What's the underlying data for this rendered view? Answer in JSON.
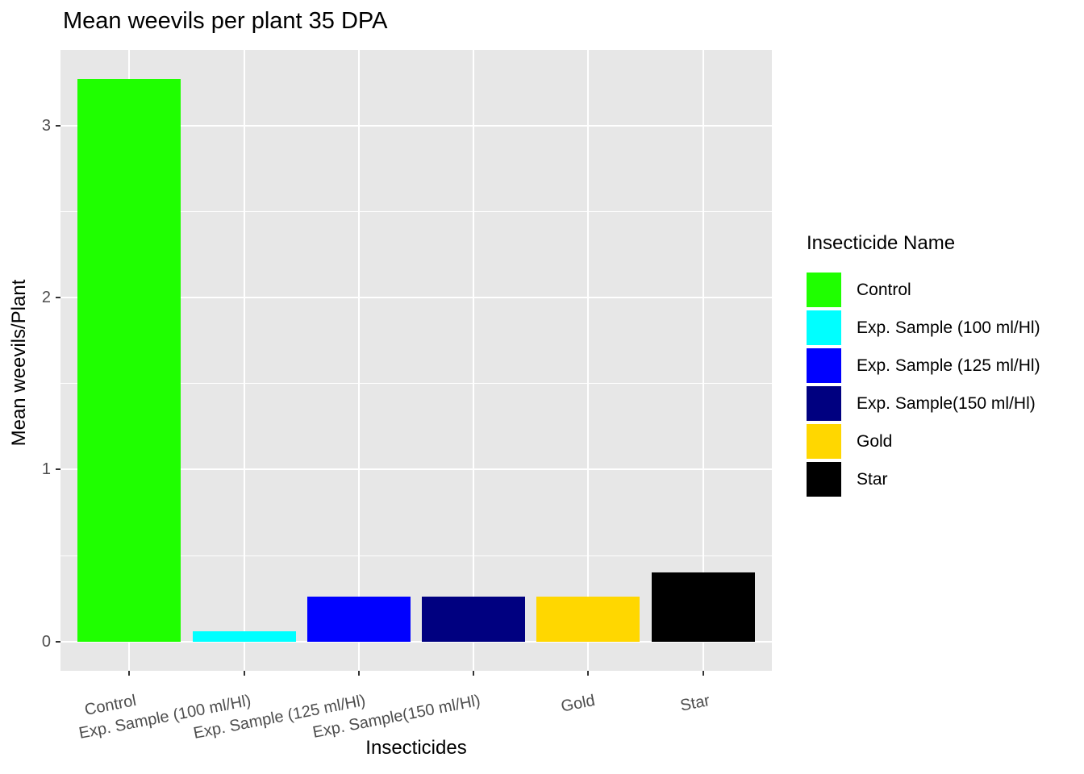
{
  "title": "Mean weevils per plant 35 DPA",
  "chart_data": {
    "type": "bar",
    "title": "Mean weevils per plant 35 DPA",
    "xlabel": "Insecticides",
    "ylabel": "Mean weevils/Plant",
    "categories": [
      "Control",
      "Exp. Sample (100 ml/Hl)",
      "Exp. Sample (125 ml/Hl)",
      "Exp. Sample(150 ml/Hl)",
      "Gold",
      "Star"
    ],
    "values": [
      3.27,
      0.06,
      0.26,
      0.26,
      0.26,
      0.4
    ],
    "bar_colors": [
      "#1FFF00",
      "#00FFFF",
      "#0000FF",
      "#000080",
      "#FFD700",
      "#000000"
    ],
    "ylim": [
      -0.17,
      3.44
    ],
    "yticks": [
      0,
      1,
      2,
      3
    ],
    "y_minor_ticks": [
      0.5,
      1.5,
      2.5
    ],
    "grid": "white major and minor gridlines on gray panel",
    "panel_bg": "#E7E7E7",
    "grid_color": "#FFFFFF",
    "tick_label_color": "#4D4D4D",
    "x_label_rotation_deg": -11,
    "legend": {
      "title": "Insecticide Name",
      "position": "right",
      "entries": [
        {
          "label": "Control",
          "color": "#1FFF00"
        },
        {
          "label": "Exp. Sample (100 ml/Hl)",
          "color": "#00FFFF"
        },
        {
          "label": "Exp. Sample (125 ml/Hl)",
          "color": "#0000FF"
        },
        {
          "label": "Exp. Sample(150 ml/Hl)",
          "color": "#000080"
        },
        {
          "label": "Gold",
          "color": "#FFD700"
        },
        {
          "label": "Star",
          "color": "#000000"
        }
      ]
    }
  }
}
